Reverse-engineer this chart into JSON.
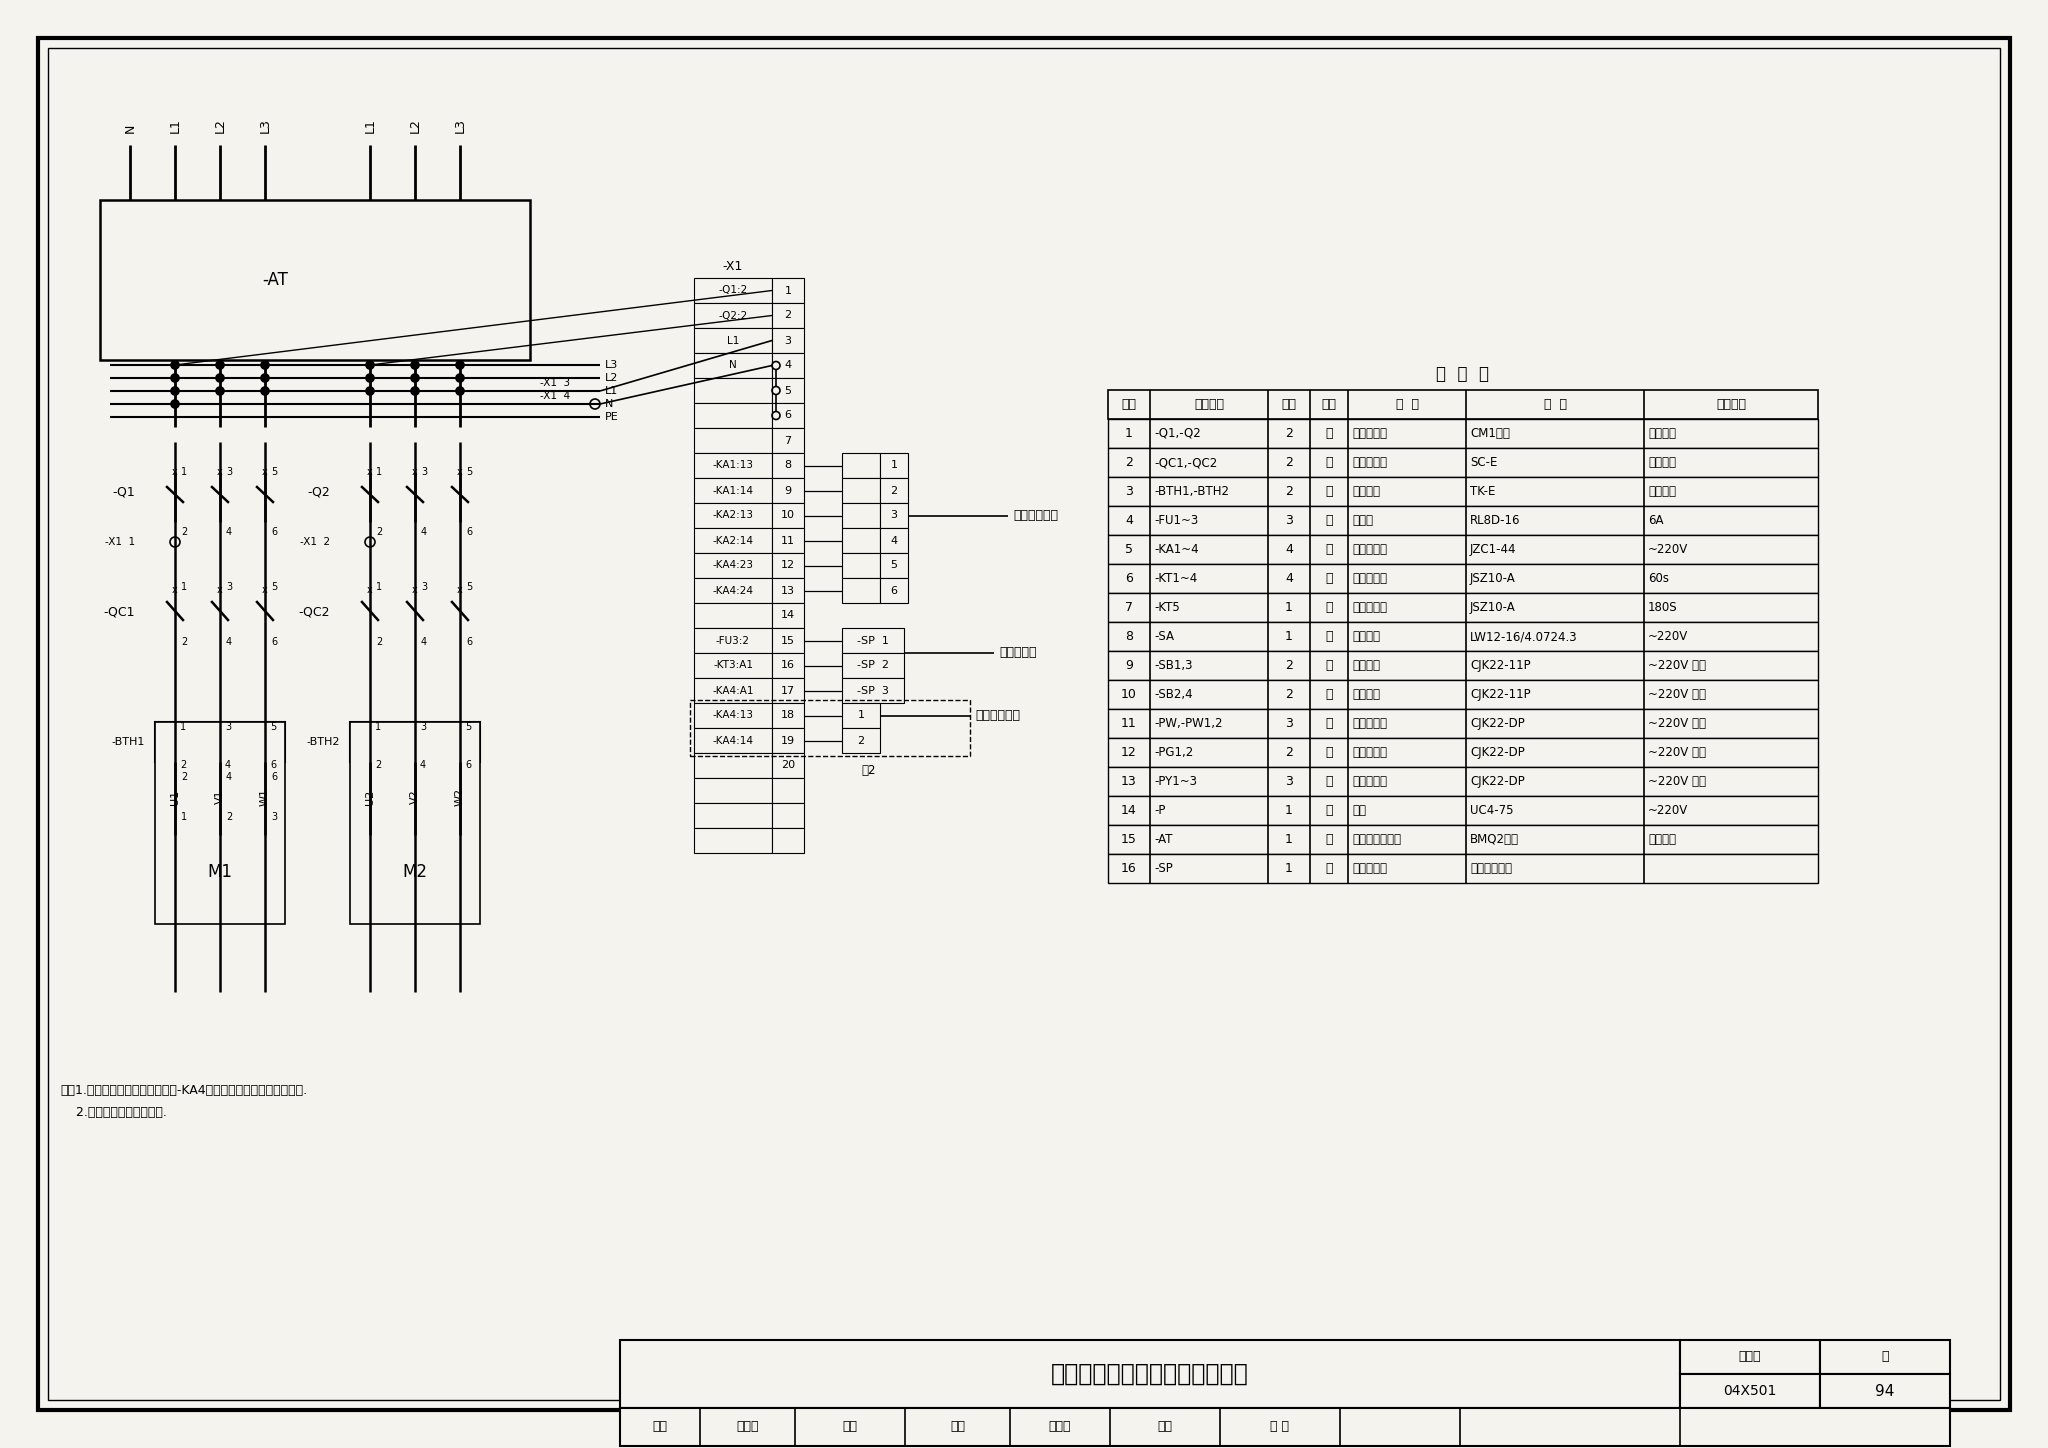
{
  "bg_color": "#f5f3ee",
  "title_main": "消防稳压泵一用一备控制电路图",
  "page": "94",
  "drawing_no": "04X501",
  "table_title": "明  细  表",
  "table_headers": [
    "项号",
    "参照代号",
    "数量",
    "单位",
    "名  称",
    "型  号",
    "技术数据"
  ],
  "table_rows": [
    [
      "1",
      "-Q1,-Q2",
      "2",
      "个",
      "低压断路器",
      "CM1系列",
      "见系统图"
    ],
    [
      "2",
      "-QC1,-QC2",
      "2",
      "个",
      "交流接触器",
      "SC-E",
      "见系统图"
    ],
    [
      "3",
      "-BTH1,-BTH2",
      "2",
      "个",
      "热继电器",
      "TK-E",
      "见系统图"
    ],
    [
      "4",
      "-FU1~3",
      "3",
      "个",
      "熔断器",
      "RL8D-16",
      "6A"
    ],
    [
      "5",
      "-KA1~4",
      "4",
      "个",
      "中间继电器",
      "JZC1-44",
      "~220V"
    ],
    [
      "6",
      "-KT1~4",
      "4",
      "个",
      "时间继电器",
      "JSZ10-A",
      "60s"
    ],
    [
      "7",
      "-KT5",
      "1",
      "个",
      "时间继电器",
      "JSZ10-A",
      "180S"
    ],
    [
      "8",
      "-SA",
      "1",
      "个",
      "选择开关",
      "LW12-16/4.0724.3",
      "~220V"
    ],
    [
      "9",
      "-SB1,3",
      "2",
      "个",
      "停止按钮",
      "CJK22-11P",
      "~220V 白色"
    ],
    [
      "10",
      "-SB2,4",
      "2",
      "个",
      "起动按钮",
      "CJK22-11P",
      "~220V 绿色"
    ],
    [
      "11",
      "-PW,-PW1,2",
      "3",
      "个",
      "白色信号灯",
      "CJK22-DP",
      "~220V 白色"
    ],
    [
      "12",
      "-PG1,2",
      "2",
      "个",
      "绿色信号灯",
      "CJK22-DP",
      "~220V 绿色"
    ],
    [
      "13",
      "-PY1~3",
      "3",
      "个",
      "黄色信号灯",
      "CJK22-DP",
      "~220V 黄色"
    ],
    [
      "14",
      "-P",
      "1",
      "个",
      "电铃",
      "UC4-75",
      "~220V"
    ],
    [
      "15",
      "-AT",
      "1",
      "套",
      "双电源切换装置",
      "BMQ2系列",
      "见系统图"
    ],
    [
      "16",
      "-SP",
      "1",
      "个",
      "压力控制器",
      "由水工种提供",
      ""
    ]
  ],
  "x1_rows": [
    [
      "-Q1:2",
      "1"
    ],
    [
      "-Q2:2",
      "2"
    ],
    [
      "L1",
      "3"
    ],
    [
      "N",
      "4"
    ],
    [
      "",
      "5"
    ],
    [
      "",
      "6"
    ],
    [
      "",
      "7"
    ],
    [
      "-KA1:13",
      "8"
    ],
    [
      "-KA1:14",
      "9"
    ],
    [
      "-KA2:13",
      "10"
    ],
    [
      "-KA2:14",
      "11"
    ],
    [
      "-KA4:23",
      "12"
    ],
    [
      "-KA4:24",
      "13"
    ],
    [
      "",
      "14"
    ],
    [
      "-FU3:2",
      "15"
    ],
    [
      "-KT3:A1",
      "16"
    ],
    [
      "-KA4:A1",
      "17"
    ],
    [
      "-KA4:13",
      "18"
    ],
    [
      "-KA4:14",
      "19"
    ],
    [
      "",
      "20"
    ],
    [
      "",
      ""
    ],
    [
      "",
      ""
    ],
    [
      "",
      ""
    ]
  ],
  "note1": "注：1.当有值班室时此回路取消，-KA4触点送至值班室内集中信号屏.",
  "note2": "    2.无值班室时此部分取消.",
  "bottom_info": [
    "审核",
    "姚家祥",
    "制图",
    "校对",
    "王铁锋",
    "设计",
    "张 环"
  ]
}
